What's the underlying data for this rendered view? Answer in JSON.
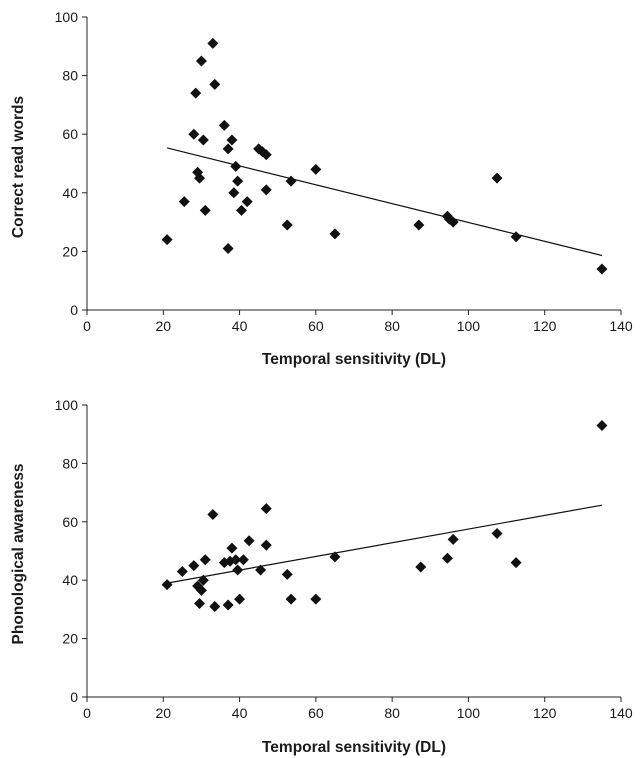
{
  "chart_data": [
    {
      "type": "scatter",
      "title": "",
      "xlabel": "Temporal sensitivity (DL)",
      "ylabel": "Correct read words",
      "xlim": [
        0,
        140
      ],
      "ylim": [
        0,
        100
      ],
      "x_ticks": [
        "0",
        "20",
        "40",
        "60",
        "80",
        "100",
        "120",
        "140"
      ],
      "y_ticks": [
        "0",
        "20",
        "40",
        "60",
        "80",
        "100"
      ],
      "grid": false,
      "marker": "diamond",
      "points": [
        {
          "x": 21,
          "y": 24
        },
        {
          "x": 25.5,
          "y": 37
        },
        {
          "x": 28,
          "y": 60
        },
        {
          "x": 28.5,
          "y": 74
        },
        {
          "x": 29,
          "y": 47
        },
        {
          "x": 29.5,
          "y": 45
        },
        {
          "x": 30,
          "y": 85
        },
        {
          "x": 30.5,
          "y": 58
        },
        {
          "x": 31,
          "y": 34
        },
        {
          "x": 33,
          "y": 91
        },
        {
          "x": 33.5,
          "y": 77
        },
        {
          "x": 36,
          "y": 63
        },
        {
          "x": 37,
          "y": 55
        },
        {
          "x": 37,
          "y": 21
        },
        {
          "x": 38,
          "y": 58
        },
        {
          "x": 38.5,
          "y": 40
        },
        {
          "x": 39,
          "y": 49
        },
        {
          "x": 39.5,
          "y": 44
        },
        {
          "x": 40.5,
          "y": 34
        },
        {
          "x": 42,
          "y": 37
        },
        {
          "x": 45,
          "y": 55
        },
        {
          "x": 46,
          "y": 54
        },
        {
          "x": 47,
          "y": 53
        },
        {
          "x": 47,
          "y": 41
        },
        {
          "x": 52.5,
          "y": 29
        },
        {
          "x": 53.5,
          "y": 44
        },
        {
          "x": 60,
          "y": 48
        },
        {
          "x": 65,
          "y": 26
        },
        {
          "x": 87,
          "y": 29
        },
        {
          "x": 94.5,
          "y": 32
        },
        {
          "x": 95,
          "y": 31
        },
        {
          "x": 96,
          "y": 30
        },
        {
          "x": 107.5,
          "y": 45
        },
        {
          "x": 112.5,
          "y": 25
        },
        {
          "x": 135,
          "y": 14
        }
      ],
      "trendline": {
        "x": [
          21,
          135
        ],
        "y": [
          55.3,
          18.6
        ]
      }
    },
    {
      "type": "scatter",
      "title": "",
      "xlabel": "Temporal sensitivity (DL)",
      "ylabel": "Phonological awareness",
      "xlim": [
        0,
        140
      ],
      "ylim": [
        0,
        100
      ],
      "x_ticks": [
        "0",
        "20",
        "40",
        "60",
        "80",
        "100",
        "120",
        "140"
      ],
      "y_ticks": [
        "0",
        "20",
        "40",
        "60",
        "80",
        "100"
      ],
      "grid": false,
      "marker": "diamond",
      "points": [
        {
          "x": 21,
          "y": 38.5
        },
        {
          "x": 25,
          "y": 43
        },
        {
          "x": 28,
          "y": 45
        },
        {
          "x": 29,
          "y": 38
        },
        {
          "x": 29.5,
          "y": 32
        },
        {
          "x": 30,
          "y": 36.5
        },
        {
          "x": 30.5,
          "y": 40
        },
        {
          "x": 31,
          "y": 47
        },
        {
          "x": 33,
          "y": 62.5
        },
        {
          "x": 33.5,
          "y": 31
        },
        {
          "x": 36,
          "y": 46
        },
        {
          "x": 37,
          "y": 31.5
        },
        {
          "x": 37.5,
          "y": 46.5
        },
        {
          "x": 38,
          "y": 51
        },
        {
          "x": 39,
          "y": 47
        },
        {
          "x": 39.5,
          "y": 43.5
        },
        {
          "x": 40,
          "y": 33.5
        },
        {
          "x": 41,
          "y": 47
        },
        {
          "x": 42.5,
          "y": 53.5
        },
        {
          "x": 45.5,
          "y": 43.5
        },
        {
          "x": 47,
          "y": 52
        },
        {
          "x": 47,
          "y": 64.5
        },
        {
          "x": 52.5,
          "y": 42
        },
        {
          "x": 53.5,
          "y": 33.5
        },
        {
          "x": 60,
          "y": 33.5
        },
        {
          "x": 65,
          "y": 48
        },
        {
          "x": 87.5,
          "y": 44.5
        },
        {
          "x": 94.5,
          "y": 47.5
        },
        {
          "x": 96,
          "y": 54
        },
        {
          "x": 107.5,
          "y": 56
        },
        {
          "x": 112.5,
          "y": 46
        },
        {
          "x": 135,
          "y": 93
        }
      ],
      "trendline": {
        "x": [
          21,
          135
        ],
        "y": [
          39.0,
          65.7
        ]
      }
    }
  ]
}
